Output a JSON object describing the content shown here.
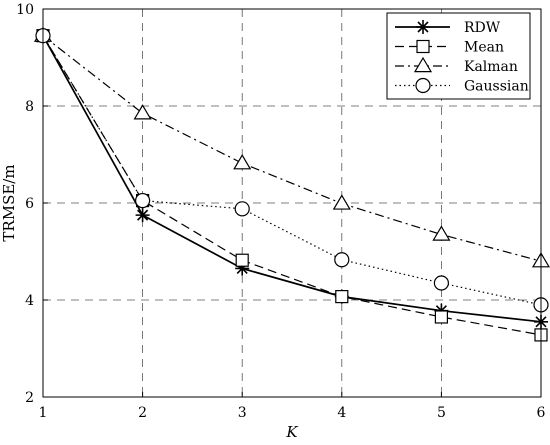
{
  "chart_data": {
    "type": "line",
    "xlabel": "K",
    "ylabel": "TRMSE/m",
    "x": [
      1,
      2,
      3,
      4,
      5,
      6
    ],
    "xlim": [
      1,
      6
    ],
    "ylim": [
      2,
      10
    ],
    "xticks": [
      "1",
      "2",
      "3",
      "4",
      "5",
      "6"
    ],
    "yticks": [
      "2",
      "4",
      "6",
      "8",
      "10"
    ],
    "grid": true,
    "legend_position": "top-right",
    "series": [
      {
        "name": "RDW",
        "values": [
          9.45,
          5.75,
          4.65,
          4.07,
          3.78,
          3.55
        ],
        "marker": "asterisk",
        "dash": "solid"
      },
      {
        "name": "Mean",
        "values": [
          9.45,
          6.05,
          4.82,
          4.07,
          3.65,
          3.28
        ],
        "marker": "square",
        "dash": "dashed"
      },
      {
        "name": "Kalman",
        "values": [
          9.45,
          7.85,
          6.82,
          5.99,
          5.35,
          4.8
        ],
        "marker": "triangle",
        "dash": "dashdot"
      },
      {
        "name": "Gaussian",
        "values": [
          9.45,
          6.05,
          5.88,
          4.83,
          4.35,
          3.9
        ],
        "marker": "circle",
        "dash": "dotted"
      }
    ]
  }
}
